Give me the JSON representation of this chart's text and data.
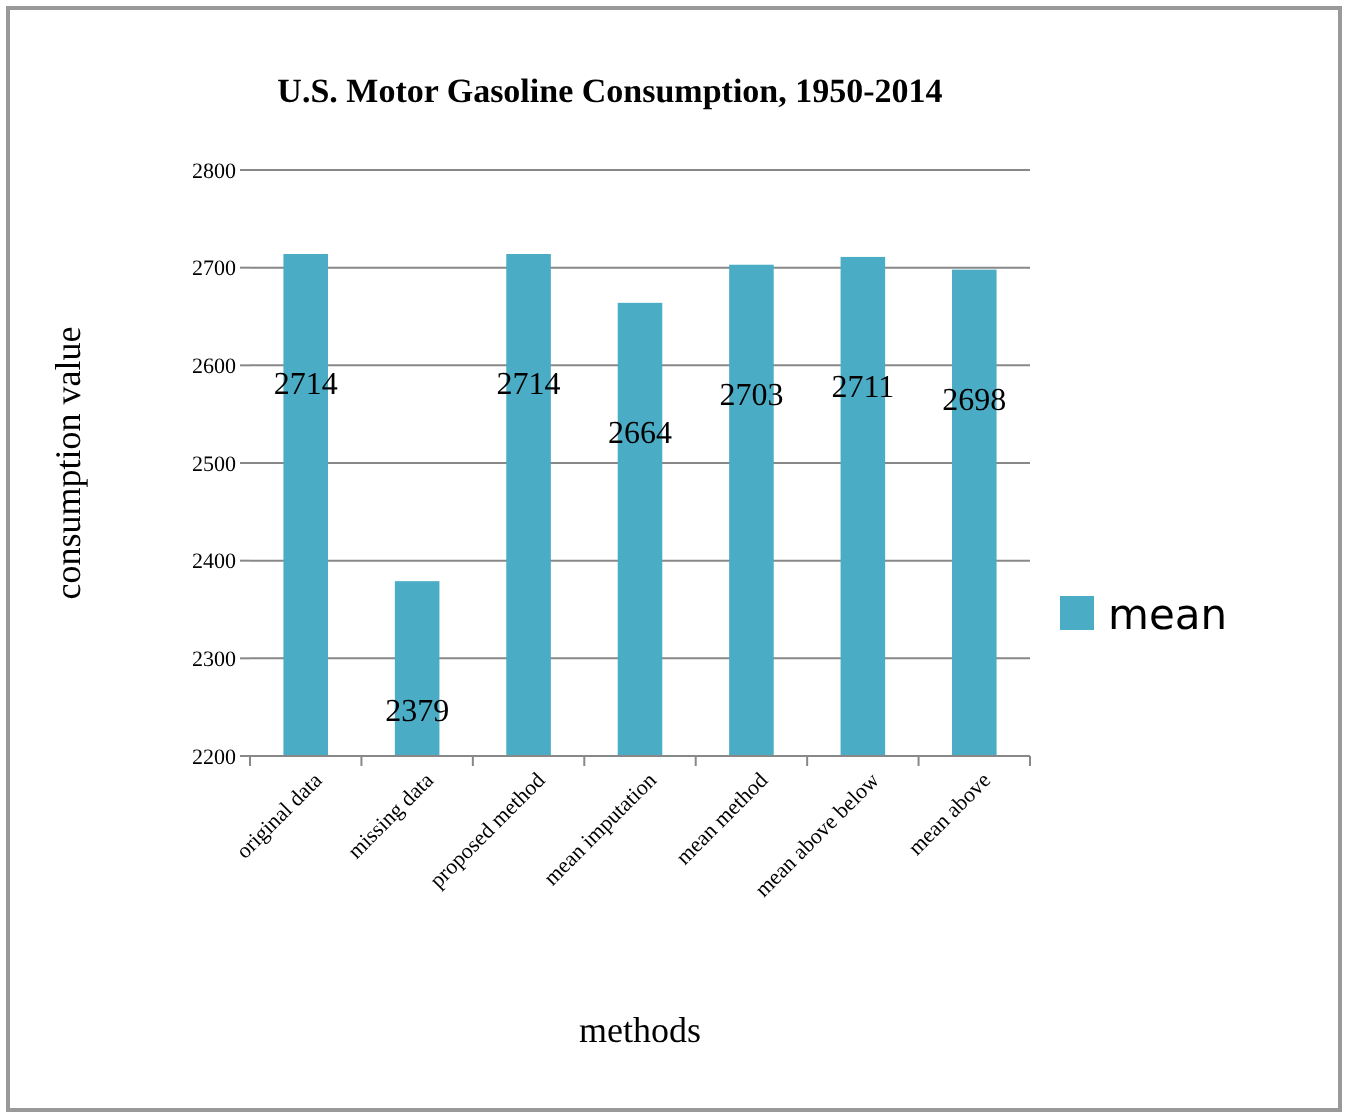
{
  "chart_data": {
    "type": "bar",
    "title": "U.S. Motor Gasoline Consumption, 1950-2014",
    "xlabel": "methods",
    "ylabel": "consumption value",
    "categories": [
      "original data",
      "missing data",
      "proposed method",
      "mean imputation",
      "mean method",
      "mean above below",
      "mean above"
    ],
    "series": [
      {
        "name": "mean",
        "color": "#4bacc6",
        "values": [
          2714,
          2379,
          2714,
          2664,
          2703,
          2711,
          2698
        ]
      }
    ],
    "ylim": [
      2200,
      2800
    ],
    "yticks": [
      2200,
      2300,
      2400,
      2500,
      2600,
      2700,
      2800
    ],
    "grid": "y",
    "legend": "right",
    "data_labels": true
  }
}
